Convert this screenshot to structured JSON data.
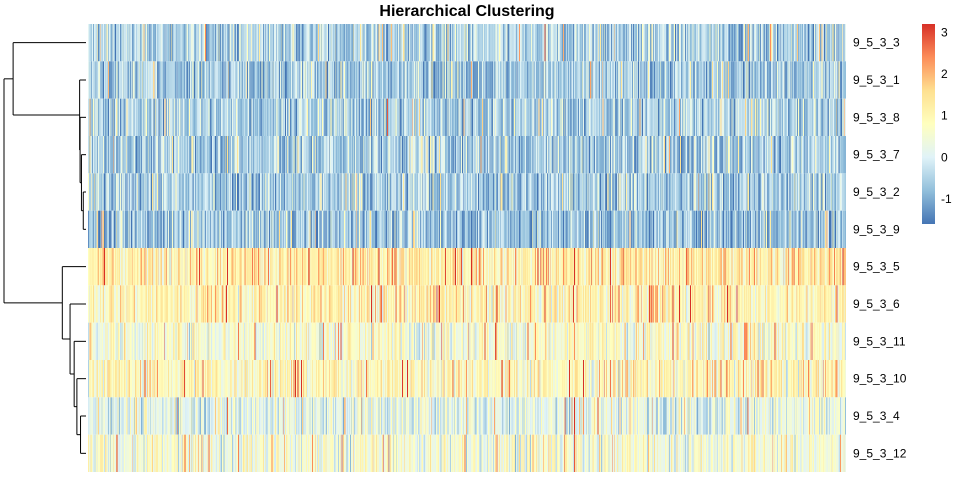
{
  "chart_data": {
    "type": "heatmap",
    "title": "Hierarchical Clustering",
    "rows": [
      "9_5_3_3",
      "9_5_3_1",
      "9_5_3_8",
      "9_5_3_7",
      "9_5_3_2",
      "9_5_3_9",
      "9_5_3_5",
      "9_5_3_6",
      "9_5_3_11",
      "9_5_3_10",
      "9_5_3_4",
      "9_5_3_12"
    ],
    "row_means": [
      -0.5,
      -0.6,
      -0.5,
      -0.55,
      -0.6,
      -0.7,
      1.2,
      1.0,
      0.6,
      0.9,
      0.2,
      0.5
    ],
    "n_columns": 900,
    "colorbar": {
      "ticks": [
        3,
        2,
        1,
        0,
        -1
      ],
      "range": [
        -1.6,
        3.2
      ],
      "colors": [
        "#4575b4",
        "#91bfdb",
        "#e0f3f8",
        "#ffffbf",
        "#fee090",
        "#fc8d59",
        "#d73027"
      ]
    },
    "dendrogram": {
      "side": "left",
      "merges": [
        {
          "rows": [
            "9_5_3_2",
            "9_5_3_9"
          ],
          "height": 0.6
        },
        {
          "rows": [
            "9_5_3_7",
            "(9_5_3_2,9_5_3_9)"
          ],
          "height": 1.0
        },
        {
          "rows": [
            "9_5_3_8",
            "(9_5_3_7,...)"
          ],
          "height": 1.3
        },
        {
          "rows": [
            "9_5_3_1",
            "(9_5_3_8,...)"
          ],
          "height": 1.4
        },
        {
          "rows": [
            "9_5_3_3",
            "(9_5_3_1,...)"
          ],
          "height": 16.0
        },
        {
          "rows": [
            "9_5_3_4",
            "9_5_3_12"
          ],
          "height": 1.2
        },
        {
          "rows": [
            "9_5_3_10",
            "(9_5_3_4,9_5_3_12)"
          ],
          "height": 2.0
        },
        {
          "rows": [
            "9_5_3_11",
            "(9_5_3_10,...)"
          ],
          "height": 2.6
        },
        {
          "rows": [
            "9_5_3_6",
            "(9_5_3_11,...)"
          ],
          "height": 3.5
        },
        {
          "rows": [
            "9_5_3_5",
            "(9_5_3_6,...)"
          ],
          "height": 5.2
        },
        {
          "rows": [
            "upper cluster",
            "lower cluster"
          ],
          "height": 18.0
        }
      ]
    }
  }
}
